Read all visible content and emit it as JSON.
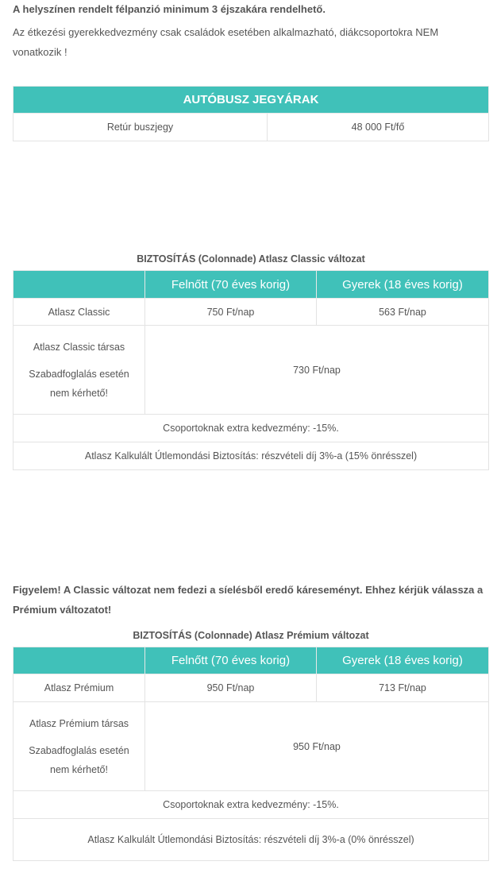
{
  "intro": {
    "line1": "A helyszínen rendelt félpanzió minimum 3 éjszakára rendelhető.",
    "line2": " Az étkezési gyerekkedvezmény csak családok esetében alkalmazható, diákcsoportokra NEM vonatkozik !"
  },
  "bus": {
    "title": "AUTÓBUSZ JEGYÁRAK",
    "rows": [
      [
        "Retúr buszjegy",
        "48 000 Ft/fő"
      ]
    ]
  },
  "classic": {
    "title": "BIZTOSÍTÁS (Colonnade) Atlasz Classic változat",
    "headers": [
      "",
      "Felnőtt (70 éves korig)",
      "Gyerek (18 éves korig)"
    ],
    "row1": [
      "Atlasz Classic",
      "750 Ft/nap",
      "563 Ft/nap"
    ],
    "row2": {
      "label": "Atlasz Classic társas",
      "note": "Szabadfoglalás esetén nem kérhető!",
      "value": "730 Ft/nap"
    },
    "discount": "Csoportoknak extra kedvezmény: -15%.",
    "cancel": "Atlasz Kalkulált Útlemondási Biztosítás: részvételi díj 3%-a (15% önrésszel)"
  },
  "warning": "Figyelem! A Classic változat nem fedezi a síelésből eredő káreseményt. Ehhez kérjük válassza a Prémium változatot!",
  "premium": {
    "title": "BIZTOSÍTÁS (Colonnade) Atlasz Prémium változat",
    "headers": [
      "",
      "Felnőtt (70 éves korig)",
      "Gyerek (18 éves korig)"
    ],
    "row1": [
      "Atlasz Prémium",
      "950 Ft/nap",
      "713 Ft/nap"
    ],
    "row2": {
      "label": "Atlasz Prémium társas",
      "note": "Szabadfoglalás esetén nem kérhető!",
      "value": "950 Ft/nap"
    },
    "discount": "Csoportoknak extra kedvezmény: -15%.",
    "cancel": "Atlasz Kalkulált Útlemondási Biztosítás: részvételi díj 3%-a (0% önrésszel)"
  },
  "colors": {
    "accent": "#40c1b9",
    "text": "#555555"
  }
}
